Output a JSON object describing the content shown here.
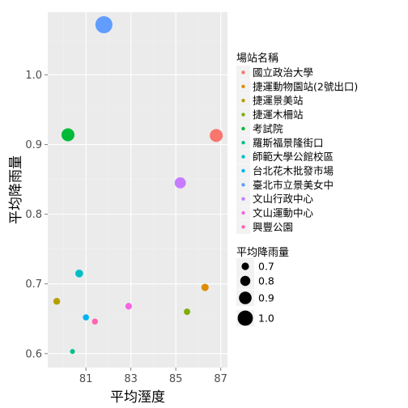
{
  "chart_data": {
    "type": "scatter",
    "xlabel": "平均溼度",
    "ylabel": "平均降雨量",
    "xlim": [
      79.3,
      87.3
    ],
    "ylim": [
      0.58,
      1.09
    ],
    "xticks": [
      81,
      83,
      85,
      87
    ],
    "yticks": [
      0.6,
      0.7,
      0.8,
      0.9,
      1.0
    ],
    "ytick_labels": [
      "0.6",
      "0.7",
      "0.8",
      "0.9",
      "1.0"
    ],
    "grid": true,
    "legend_position": "right",
    "color_legend": {
      "title": "場站名稱",
      "entries": [
        {
          "name": "國立政治大學",
          "color": "#F8766D"
        },
        {
          "name": "捷運動物園站(2號出口)",
          "color": "#DE8C00"
        },
        {
          "name": "捷運景美站",
          "color": "#B79F00"
        },
        {
          "name": "捷運木柵站",
          "color": "#7CAE00"
        },
        {
          "name": "考試院",
          "color": "#00BA38"
        },
        {
          "name": "羅斯福景隆街口",
          "color": "#00C08B"
        },
        {
          "name": "師範大學公館校區",
          "color": "#00BFC4"
        },
        {
          "name": "台北花木批發市場",
          "color": "#00B4F0"
        },
        {
          "name": "臺北市立景美女中",
          "color": "#619CFF"
        },
        {
          "name": "文山行政中心",
          "color": "#C77CFF"
        },
        {
          "name": "文山運動中心",
          "color": "#F564E3"
        },
        {
          "name": "興豐公園",
          "color": "#FF64B0"
        }
      ]
    },
    "size_legend": {
      "title": "平均降雨量",
      "entries": [
        {
          "label": "0.7",
          "value": 0.7
        },
        {
          "label": "0.8",
          "value": 0.8
        },
        {
          "label": "0.9",
          "value": 0.9
        },
        {
          "label": "1.0",
          "value": 1.0
        }
      ]
    },
    "points": [
      {
        "name": "國立政治大學",
        "x": 86.8,
        "y": 0.913
      },
      {
        "name": "捷運動物園站(2號出口)",
        "x": 86.3,
        "y": 0.695
      },
      {
        "name": "捷運景美站",
        "x": 79.7,
        "y": 0.675
      },
      {
        "name": "捷運木柵站",
        "x": 85.5,
        "y": 0.66
      },
      {
        "name": "考試院",
        "x": 80.2,
        "y": 0.914
      },
      {
        "name": "羅斯福景隆街口",
        "x": 80.4,
        "y": 0.603
      },
      {
        "name": "師範大學公館校區",
        "x": 80.7,
        "y": 0.715
      },
      {
        "name": "台北花木批發市場",
        "x": 81.0,
        "y": 0.652
      },
      {
        "name": "臺北市立景美女中",
        "x": 81.8,
        "y": 1.072
      },
      {
        "name": "文山行政中心",
        "x": 85.2,
        "y": 0.845
      },
      {
        "name": "文山運動中心",
        "x": 82.9,
        "y": 0.668
      },
      {
        "name": "興豐公園",
        "x": 81.4,
        "y": 0.646
      }
    ]
  }
}
